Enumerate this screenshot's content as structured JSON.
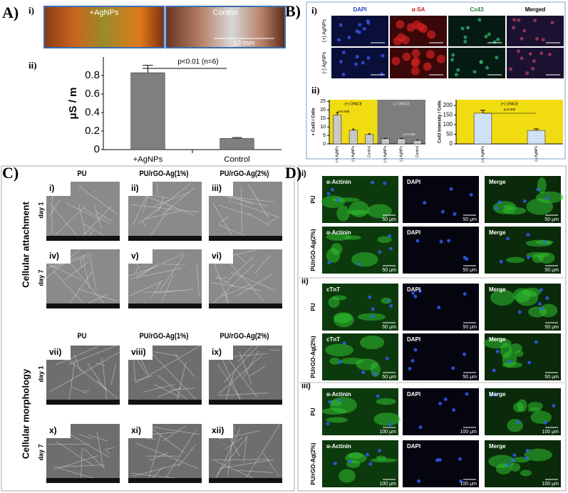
{
  "panels": {
    "a": {
      "label": "A)",
      "sub1": "i)",
      "sub2": "ii)",
      "photo_labels": [
        "+AgNPs",
        "Control"
      ],
      "scale": "10 mm"
    },
    "b": {
      "label": "B)",
      "sub1": "i)",
      "sub2": "ii)",
      "columns": [
        "DAPI",
        "α-SA",
        "Cx43",
        "Merged"
      ],
      "rows": [
        "(+) AgNPs",
        "(-) AgNPs"
      ]
    },
    "c": {
      "label": "C)",
      "columns": [
        "PU",
        "PU/rGO-Ag(1%)",
        "PU/rGO-Ag(2%)"
      ],
      "sections": [
        "Cellular attachment",
        "Cellular morphology"
      ],
      "rows": [
        "day 1",
        "day 7"
      ],
      "numerals": [
        "i)",
        "ii)",
        "iii)",
        "iv)",
        "v)",
        "vi)",
        "vii)",
        "viii)",
        "ix)",
        "x)",
        "xi)",
        "xii)"
      ]
    },
    "d": {
      "label": "D)",
      "groups": [
        {
          "sub": "i)",
          "rows": [
            "PU",
            "PU/rGO-Ag(2%)"
          ],
          "stains": [
            "α-Actinin",
            "DAPI",
            "Merge"
          ],
          "scale": "50 μm"
        },
        {
          "sub": "ii)",
          "rows": [
            "PU",
            "PU/rGO-Ag(2%)"
          ],
          "stains": [
            "cTnT",
            "DAPI",
            "Merge"
          ],
          "scale": "50 μm"
        },
        {
          "sub": "iii)",
          "rows": [
            "PU",
            "PU/rGO-Ag(2%)"
          ],
          "stains": [
            "α-Actinin",
            "DAPI",
            "Merge"
          ],
          "scale": "100 μm"
        }
      ]
    }
  },
  "chart_data": [
    {
      "type": "bar",
      "ylabel": "μS / m",
      "categories": [
        "+AgNPs",
        "Control"
      ],
      "values": [
        0.83,
        0.12
      ],
      "errors": [
        0.08,
        0.01
      ],
      "color": "#7f7f7f",
      "ylim": [
        0,
        1
      ],
      "yticks": [
        0,
        0.2,
        0.4,
        0.6,
        0.8
      ],
      "annotation": "p<0.01 (n=6)"
    },
    {
      "type": "bar",
      "ylabel": "+ Cx43 / Cells",
      "categories": [
        "(+) AgNPs",
        "(-) AgNPs",
        "Control",
        "(+) AgNPs",
        "(-) AgNPs",
        "Control"
      ],
      "values": [
        17,
        8,
        5.5,
        3,
        3,
        2
      ],
      "errors": [
        1.5,
        0.7,
        0.5,
        0.3,
        0.3,
        0.2
      ],
      "color": "#c8c8c8",
      "ylim": [
        0,
        26
      ],
      "yticks": [
        0,
        5,
        10,
        15,
        20,
        25
      ],
      "groups": [
        "(+) CPACE",
        "(-) CPACE"
      ],
      "annotations": [
        "p<0.005",
        "p<0.005"
      ]
    },
    {
      "type": "bar",
      "ylabel": "Cx43 Intensity / Cells",
      "categories": [
        "(+) AgNPs",
        "(-) AgNPs"
      ],
      "values": [
        160,
        70
      ],
      "errors": [
        15,
        8
      ],
      "color": "#cfe2f3",
      "ylim": [
        0,
        230
      ],
      "yticks": [
        0,
        50,
        100,
        150,
        200
      ],
      "groups": [
        "(+) CPACE"
      ],
      "annotations": [
        "p<0.005"
      ]
    }
  ]
}
